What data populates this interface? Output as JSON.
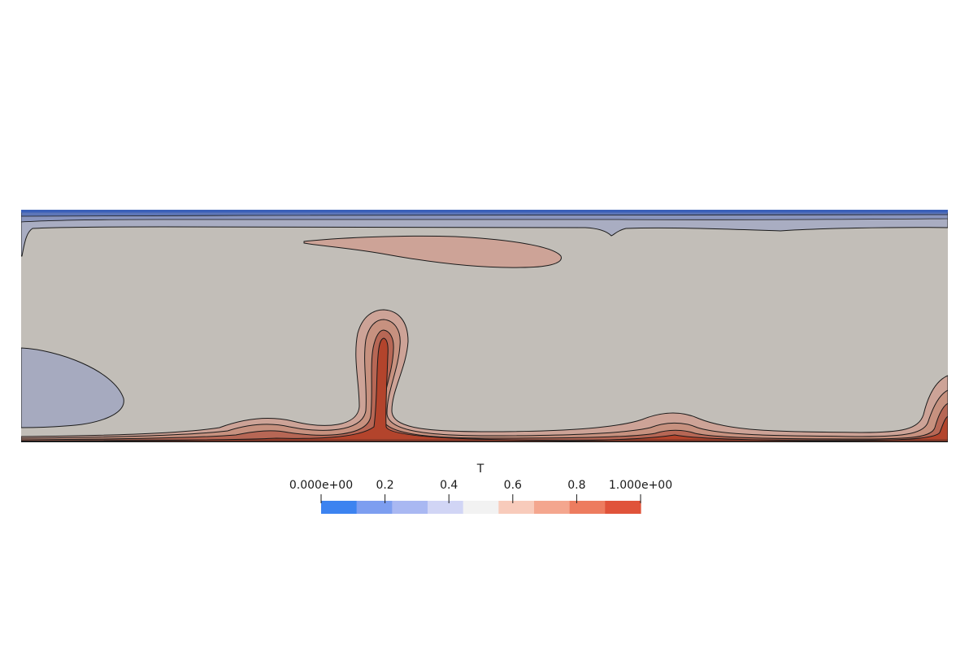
{
  "chart_data": {
    "type": "heatmap",
    "field": "T",
    "range": [
      0,
      1
    ],
    "colorbar": {
      "title": "T",
      "tick_labels": [
        "0.000e+00",
        "0.2",
        "0.4",
        "0.6",
        "0.8",
        "1.000e+00"
      ],
      "tick_values": [
        0.0,
        0.2,
        0.4,
        0.6,
        0.8,
        1.0
      ],
      "levels": 9,
      "band_colors": [
        "#3c83f0",
        "#7d9ef0",
        "#a9b8f2",
        "#d1d5f5",
        "#f2f2f2",
        "#f8cbbb",
        "#f4a68e",
        "#ed7c5f",
        "#e0533a"
      ]
    },
    "contour_colors": {
      "background": "#c2beb8",
      "cool_region": "#a6aabf",
      "warm_1": "#cda397",
      "warm_2": "#c7917f",
      "warm_3": "#b76755",
      "hot": "#b3442c",
      "top_band": "#3a5fb8",
      "top_band_2": "#5d76b8",
      "top_band_3": "#8a95bd",
      "line": "#1a1a1a"
    }
  }
}
